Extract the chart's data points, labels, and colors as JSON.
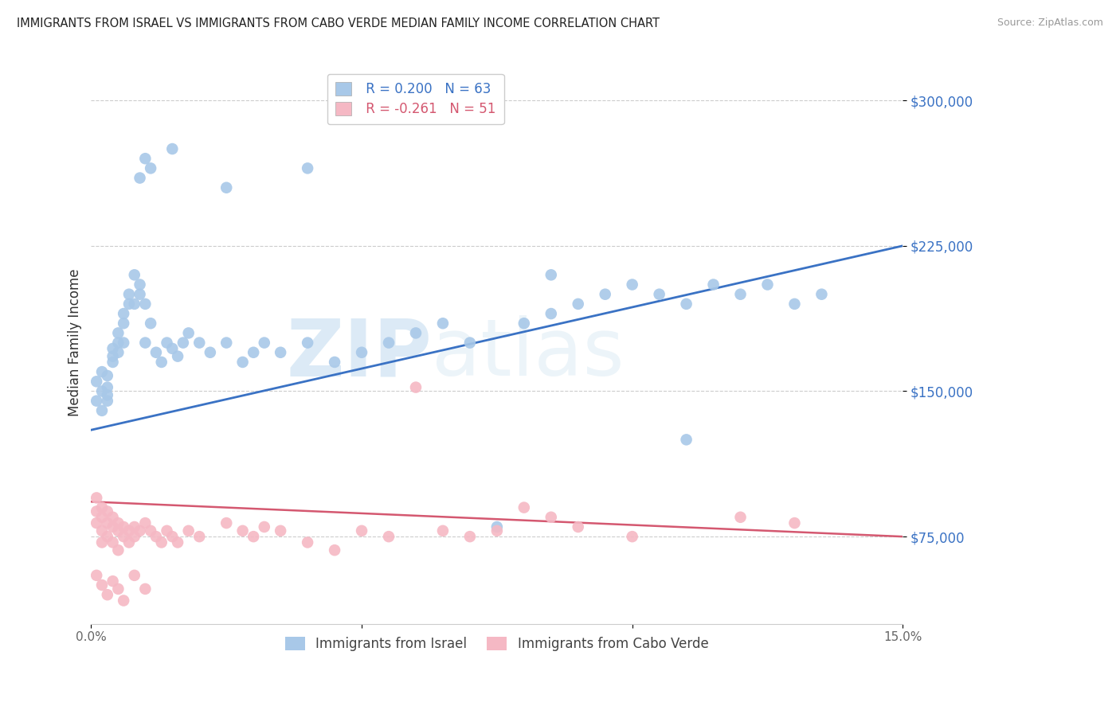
{
  "title": "IMMIGRANTS FROM ISRAEL VS IMMIGRANTS FROM CABO VERDE MEDIAN FAMILY INCOME CORRELATION CHART",
  "source": "Source: ZipAtlas.com",
  "ylabel": "Median Family Income",
  "xlim": [
    0.0,
    0.15
  ],
  "ylim": [
    30000,
    320000
  ],
  "yticks": [
    75000,
    150000,
    225000,
    300000
  ],
  "israel_color": "#a8c8e8",
  "cabo_color": "#f5b8c4",
  "israel_line_color": "#3a72c4",
  "cabo_line_color": "#d45870",
  "israel_R": 0.2,
  "israel_N": 63,
  "cabo_R": -0.261,
  "cabo_N": 51,
  "watermark_zip": "ZIP",
  "watermark_atlas": "atlas",
  "background_color": "#ffffff",
  "grid_color": "#cccccc",
  "israel_x": [
    0.001,
    0.001,
    0.002,
    0.002,
    0.002,
    0.003,
    0.003,
    0.003,
    0.003,
    0.004,
    0.004,
    0.004,
    0.005,
    0.005,
    0.005,
    0.006,
    0.006,
    0.006,
    0.007,
    0.007,
    0.008,
    0.008,
    0.009,
    0.009,
    0.01,
    0.01,
    0.011,
    0.012,
    0.013,
    0.014,
    0.015,
    0.016,
    0.017,
    0.018,
    0.02,
    0.022,
    0.025,
    0.028,
    0.03,
    0.032,
    0.035,
    0.04,
    0.045,
    0.05,
    0.055,
    0.06,
    0.065,
    0.07,
    0.075,
    0.08,
    0.085,
    0.09,
    0.095,
    0.1,
    0.105,
    0.11,
    0.115,
    0.12,
    0.125,
    0.13,
    0.135,
    0.085,
    0.11
  ],
  "israel_y": [
    145000,
    155000,
    140000,
    150000,
    160000,
    148000,
    152000,
    158000,
    145000,
    165000,
    172000,
    168000,
    175000,
    170000,
    180000,
    175000,
    185000,
    190000,
    195000,
    200000,
    195000,
    210000,
    200000,
    205000,
    195000,
    175000,
    185000,
    170000,
    165000,
    175000,
    172000,
    168000,
    175000,
    180000,
    175000,
    170000,
    175000,
    165000,
    170000,
    175000,
    170000,
    175000,
    165000,
    170000,
    175000,
    180000,
    185000,
    175000,
    80000,
    185000,
    190000,
    195000,
    200000,
    205000,
    200000,
    195000,
    205000,
    200000,
    205000,
    195000,
    200000,
    210000,
    125000
  ],
  "israel_y_high": [
    260000,
    270000,
    265000,
    275000,
    255000,
    265000
  ],
  "israel_x_high": [
    0.009,
    0.01,
    0.011,
    0.015,
    0.025,
    0.04
  ],
  "cabo_x": [
    0.001,
    0.001,
    0.001,
    0.002,
    0.002,
    0.002,
    0.002,
    0.003,
    0.003,
    0.003,
    0.004,
    0.004,
    0.004,
    0.005,
    0.005,
    0.005,
    0.006,
    0.006,
    0.007,
    0.007,
    0.008,
    0.008,
    0.009,
    0.01,
    0.011,
    0.012,
    0.013,
    0.014,
    0.015,
    0.016,
    0.018,
    0.02,
    0.025,
    0.028,
    0.03,
    0.032,
    0.035,
    0.04,
    0.045,
    0.05,
    0.055,
    0.06,
    0.065,
    0.07,
    0.075,
    0.08,
    0.085,
    0.09,
    0.1,
    0.12,
    0.13
  ],
  "cabo_y": [
    95000,
    88000,
    82000,
    90000,
    85000,
    78000,
    72000,
    82000,
    88000,
    75000,
    80000,
    85000,
    72000,
    78000,
    82000,
    68000,
    75000,
    80000,
    78000,
    72000,
    75000,
    80000,
    78000,
    82000,
    78000,
    75000,
    72000,
    78000,
    75000,
    72000,
    78000,
    75000,
    82000,
    78000,
    75000,
    80000,
    78000,
    72000,
    68000,
    78000,
    75000,
    152000,
    78000,
    75000,
    78000,
    90000,
    85000,
    80000,
    75000,
    85000,
    82000
  ],
  "cabo_y_low": [
    55000,
    50000,
    45000,
    52000,
    48000,
    42000,
    55000,
    48000
  ],
  "cabo_x_low": [
    0.001,
    0.002,
    0.003,
    0.004,
    0.005,
    0.006,
    0.008,
    0.01
  ]
}
